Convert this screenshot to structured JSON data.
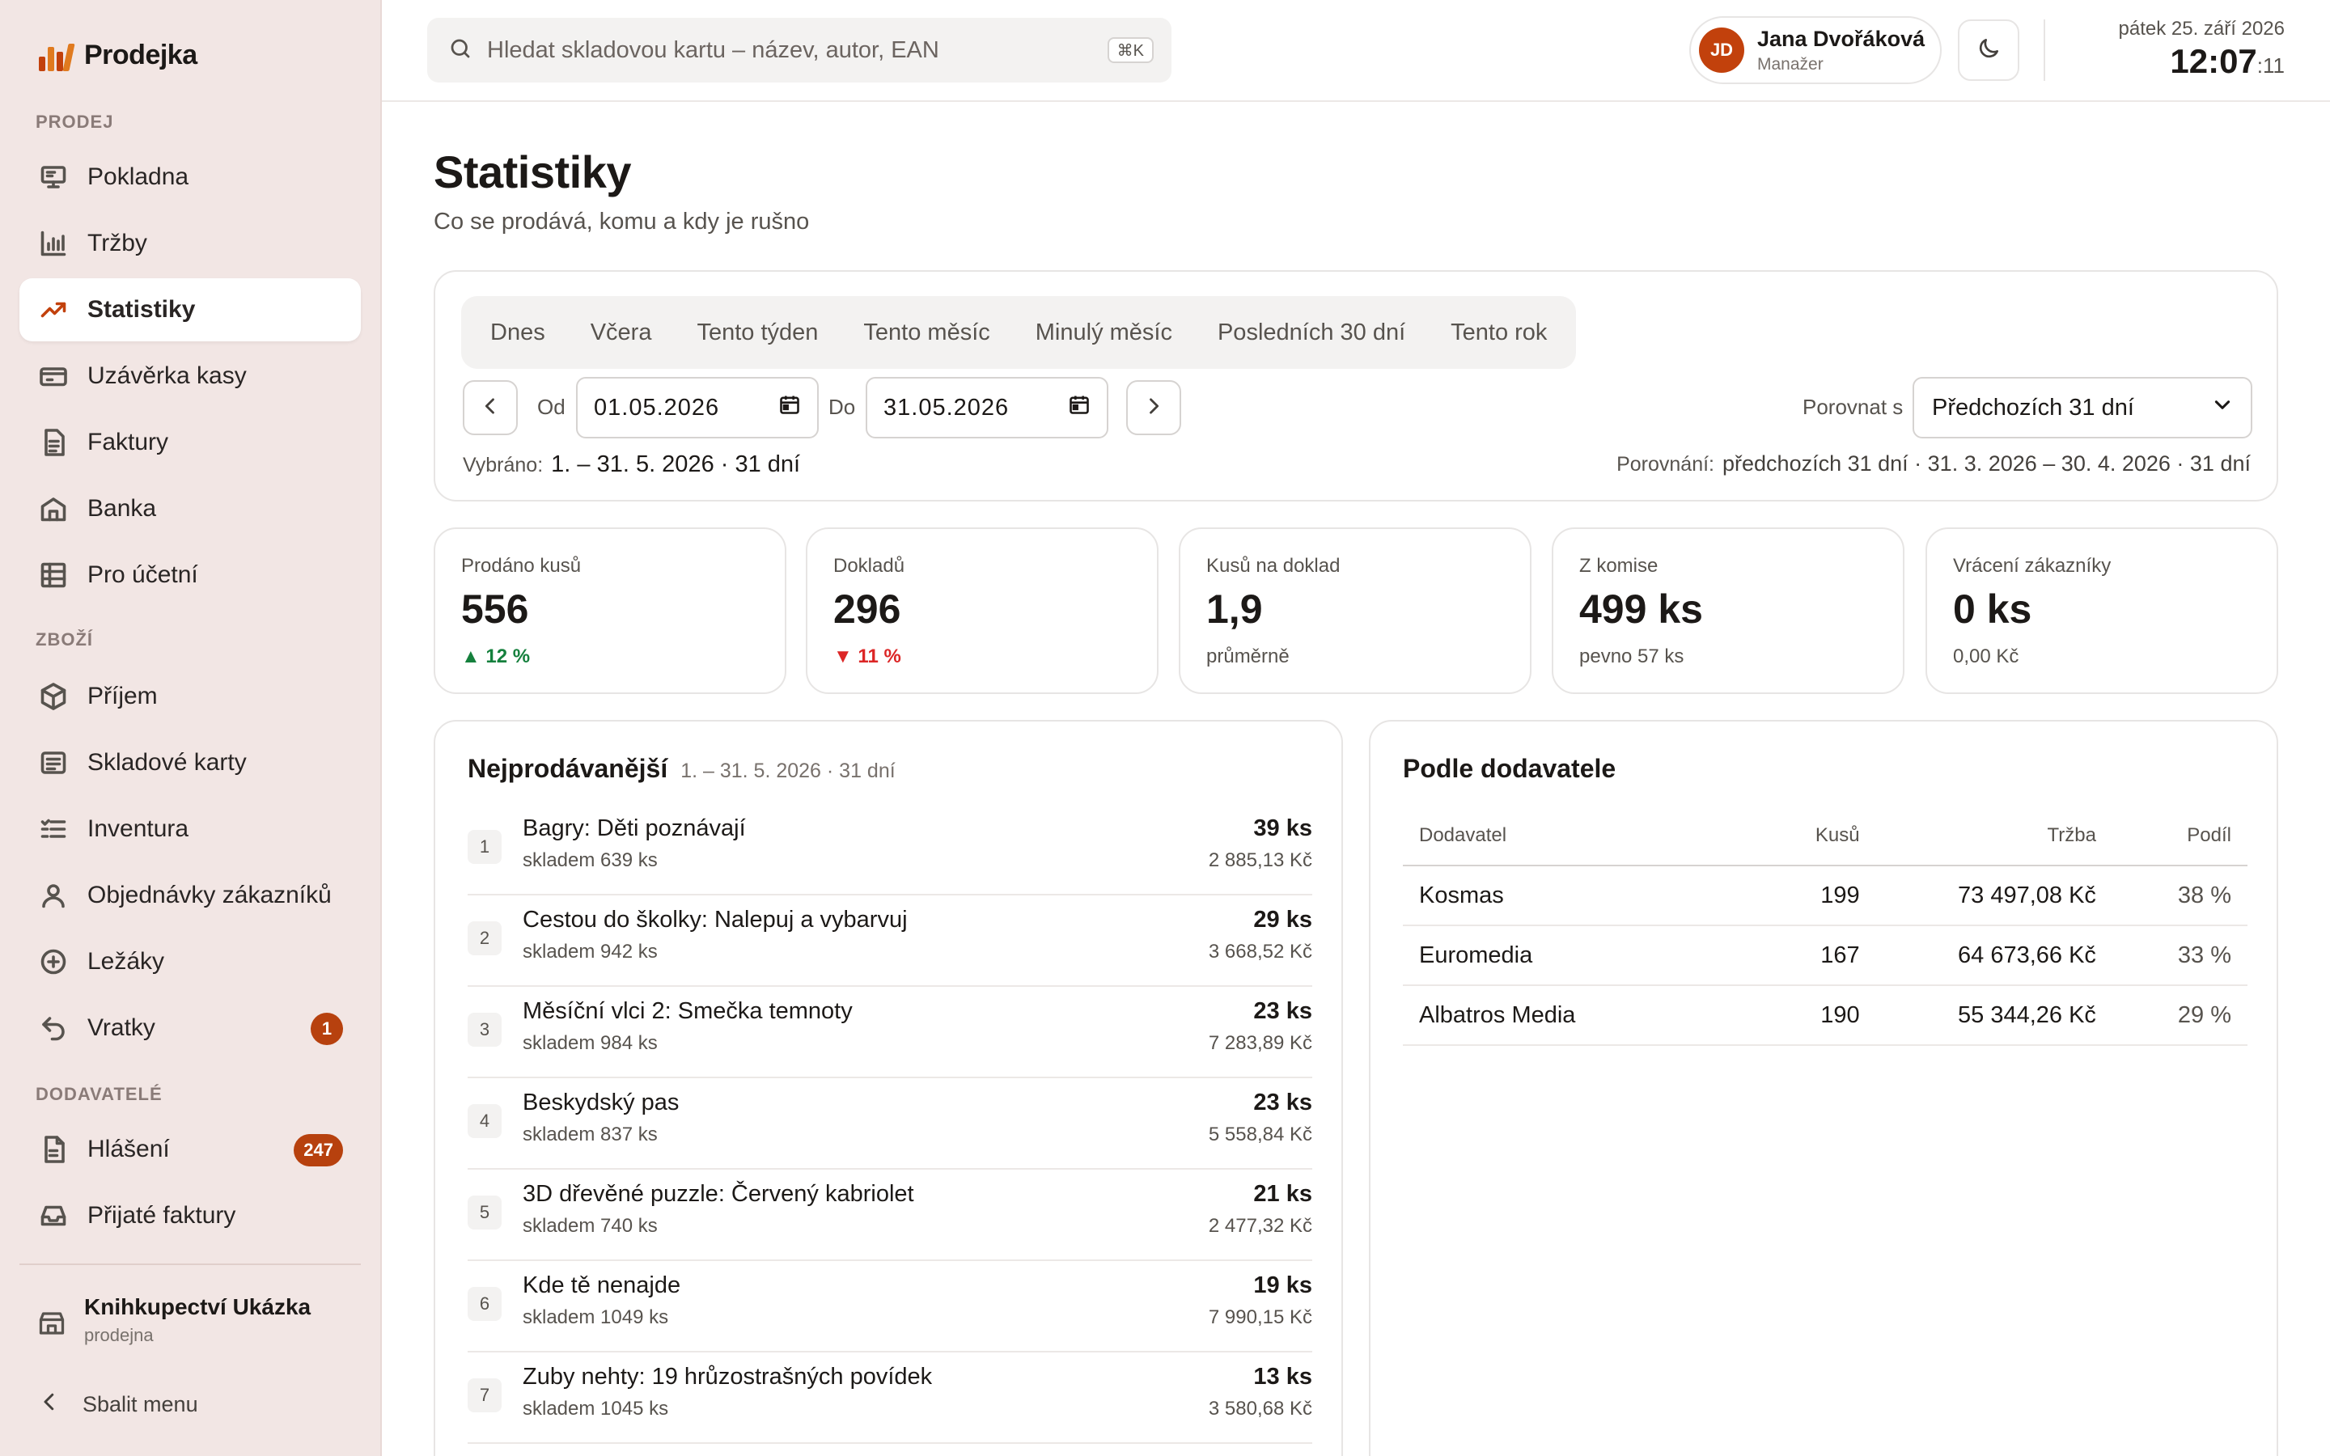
{
  "app": {
    "name": "Prodejka",
    "brand_color": "#c2410c"
  },
  "sidebar": {
    "sections": [
      {
        "label": "PRODEJ"
      },
      {
        "label": "ZBOŽÍ"
      },
      {
        "label": "DODAVATELÉ"
      }
    ],
    "items": [
      {
        "label": "Pokladna",
        "icon": "monitor-icon"
      },
      {
        "label": "Tržby",
        "icon": "bar-chart-icon"
      },
      {
        "label": "Statistiky",
        "icon": "trend-icon",
        "active": true
      },
      {
        "label": "Uzávěrka kasy",
        "icon": "cash-icon"
      },
      {
        "label": "Faktury",
        "icon": "document-icon"
      },
      {
        "label": "Banka",
        "icon": "bank-icon"
      },
      {
        "label": "Pro účetní",
        "icon": "table-icon"
      },
      {
        "label": "Příjem",
        "icon": "box-icon"
      },
      {
        "label": "Skladové karty",
        "icon": "card-list-icon"
      },
      {
        "label": "Inventura",
        "icon": "checklist-icon"
      },
      {
        "label": "Objednávky zákazníků",
        "icon": "user-icon"
      },
      {
        "label": "Ležáky",
        "icon": "plus-circle-icon"
      },
      {
        "label": "Vratky",
        "icon": "undo-icon",
        "badge": "1"
      },
      {
        "label": "Hlášení",
        "icon": "report-icon",
        "badge": "247"
      },
      {
        "label": "Přijaté faktury",
        "icon": "inbox-icon"
      }
    ],
    "store": {
      "name": "Knihkupectví Ukázka",
      "sub": "prodejna",
      "icon": "store-icon"
    },
    "collapse_label": "Sbalit menu"
  },
  "topbar": {
    "search_placeholder": "Hledat skladovou kartu – název, autor, EAN",
    "search_shortcut": "⌘K",
    "user": {
      "initials": "JD",
      "name": "Jana Dvořáková",
      "role": "Manažer"
    },
    "date_label": "pátek 25. září 2026",
    "time_main": "12:07",
    "time_seconds": ":11"
  },
  "page": {
    "title": "Statistiky",
    "subtitle": "Co se prodává, komu a kdy je rušno"
  },
  "filters": {
    "presets": [
      "Dnes",
      "Včera",
      "Tento týden",
      "Tento měsíc",
      "Minulý měsíc",
      "Posledních 30 dní",
      "Tento rok"
    ],
    "from_label": "Od",
    "from_value": "01.05.2026",
    "to_label": "Do",
    "to_value": "31.05.2026",
    "compare_label": "Porovnat s",
    "compare_value": "Předchozích 31 dní",
    "selected_label": "Vybráno:",
    "selected_value": "1. – 31. 5. 2026 · 31 dní",
    "comparison_label": "Porovnání:",
    "comparison_value": "předchozích 31 dní · 31. 3. 2026 – 30. 4. 2026 · 31 dní"
  },
  "kpis": [
    {
      "label": "Prodáno kusů",
      "value": "556",
      "sub": "▲ 12 %",
      "trend": "up"
    },
    {
      "label": "Dokladů",
      "value": "296",
      "sub": "▼ 11 %",
      "trend": "down"
    },
    {
      "label": "Kusů na doklad",
      "value": "1,9",
      "sub": "průměrně",
      "trend": "none"
    },
    {
      "label": "Z komise",
      "value": "499 ks",
      "sub": "pevno 57 ks",
      "trend": "none"
    },
    {
      "label": "Vrácení zákazníky",
      "value": "0 ks",
      "sub": "0,00 Kč",
      "trend": "none"
    }
  ],
  "bestsellers": {
    "title": "Nejprodávanější",
    "period": "1. – 31. 5. 2026 · 31 dní",
    "rows": [
      {
        "rank": "1",
        "name": "Bagry: Děti poznávají",
        "stock": "skladem 639 ks",
        "qty": "39 ks",
        "revenue": "2 885,13 Kč"
      },
      {
        "rank": "2",
        "name": "Cestou do školky: Nalepuj a vybarvuj",
        "stock": "skladem 942 ks",
        "qty": "29 ks",
        "revenue": "3 668,52 Kč"
      },
      {
        "rank": "3",
        "name": "Měsíční vlci 2: Smečka temnoty",
        "stock": "skladem 984 ks",
        "qty": "23 ks",
        "revenue": "7 283,89 Kč"
      },
      {
        "rank": "4",
        "name": "Beskydský pas",
        "stock": "skladem 837 ks",
        "qty": "23 ks",
        "revenue": "5 558,84 Kč"
      },
      {
        "rank": "5",
        "name": "3D dřevěné puzzle: Červený kabriolet",
        "stock": "skladem 740 ks",
        "qty": "21 ks",
        "revenue": "2 477,32 Kč"
      },
      {
        "rank": "6",
        "name": "Kde tě nenajde",
        "stock": "skladem 1049 ks",
        "qty": "19 ks",
        "revenue": "7 990,15 Kč"
      },
      {
        "rank": "7",
        "name": "Zuby nehty: 19 hrůzostrašných povídek",
        "stock": "skladem 1045 ks",
        "qty": "13 ks",
        "revenue": "3 580,68 Kč"
      }
    ]
  },
  "suppliers": {
    "title": "Podle dodavatele",
    "columns": [
      "Dodavatel",
      "Kusů",
      "Tržba",
      "Podíl"
    ],
    "rows": [
      {
        "name": "Kosmas",
        "qty": "199",
        "revenue": "73 497,08 Kč",
        "share": "38 %"
      },
      {
        "name": "Euromedia",
        "qty": "167",
        "revenue": "64 673,66 Kč",
        "share": "33 %"
      },
      {
        "name": "Albatros Media",
        "qty": "190",
        "revenue": "55 344,26 Kč",
        "share": "29 %"
      }
    ]
  }
}
